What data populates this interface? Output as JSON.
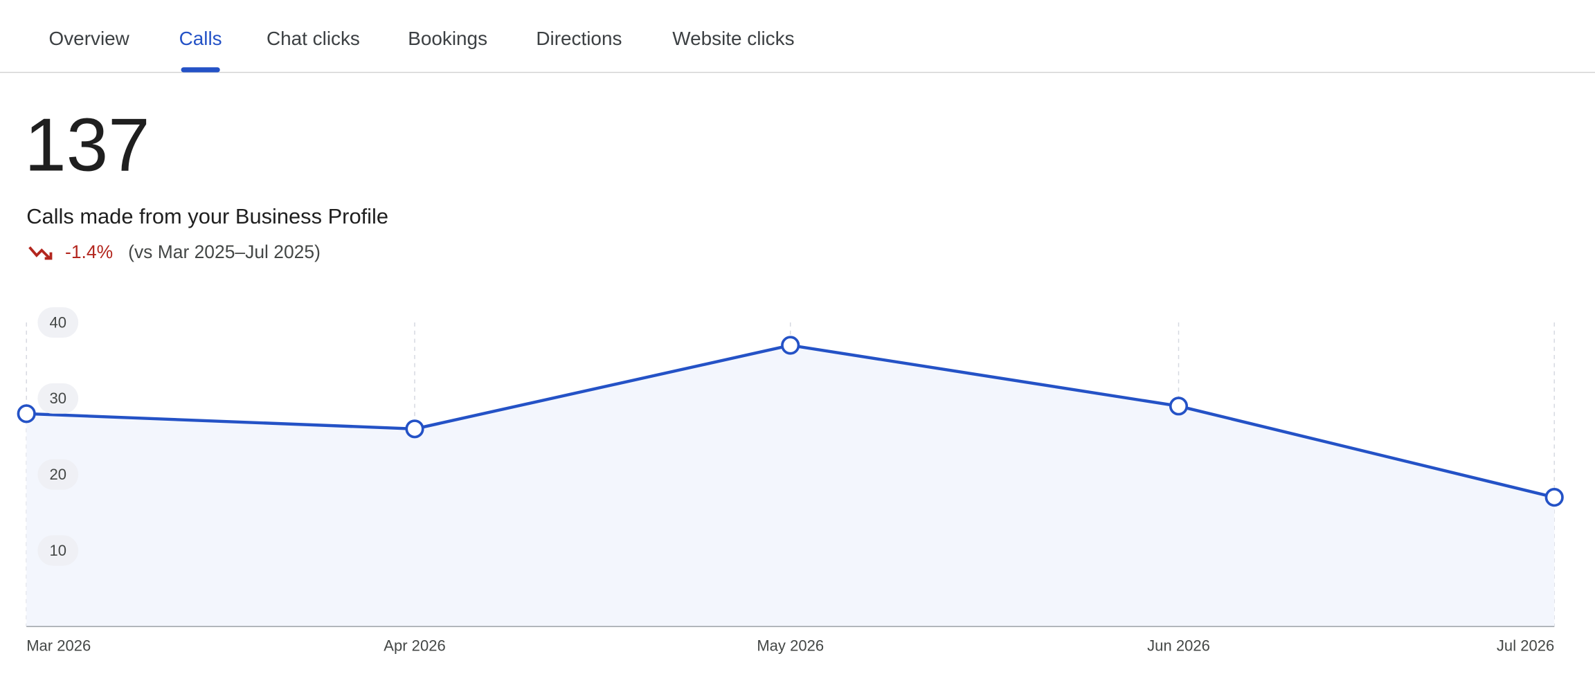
{
  "tabs": [
    "Overview",
    "Calls",
    "Chat clicks",
    "Bookings",
    "Directions",
    "Website clicks"
  ],
  "active_tab": "Calls",
  "metric": {
    "value": "137",
    "description": "Calls made from your Business Profile",
    "change": "-1.4%",
    "comparison": "(vs Mar 2025–Jul 2025)"
  },
  "chart_data": {
    "type": "line",
    "x": [
      "Mar 2026",
      "Apr 2026",
      "May 2026",
      "Jun 2026",
      "Jul 2026"
    ],
    "series": [
      {
        "name": "Calls",
        "color": "#2452c6",
        "values": [
          28,
          26,
          37,
          29,
          17
        ]
      }
    ],
    "ylim": [
      0,
      40
    ],
    "yticks": [
      10,
      20,
      30,
      40
    ],
    "grid": true
  }
}
